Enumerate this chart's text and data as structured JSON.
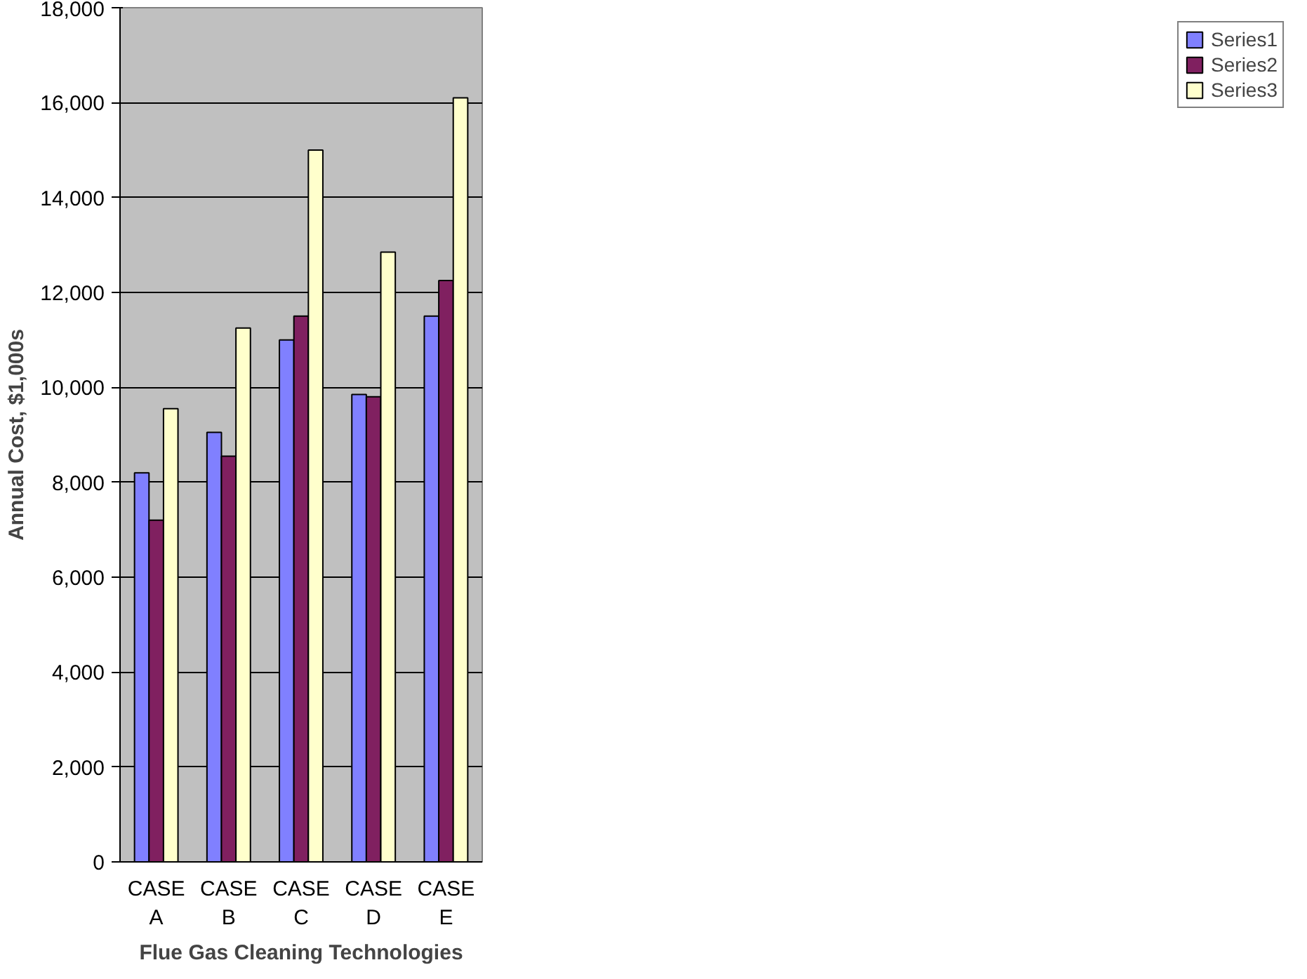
{
  "chart_data": {
    "type": "bar",
    "xlabel": "Flue Gas Cleaning Technologies",
    "ylabel": "Annual Cost, $1,000s",
    "categories": [
      "CASE\nA",
      "CASE\nB",
      "CASE\nC",
      "CASE\nD",
      "CASE\nE"
    ],
    "series": [
      {
        "name": "Series1",
        "color": "#8080ff",
        "values": [
          8200,
          9050,
          11000,
          9850,
          11500
        ]
      },
      {
        "name": "Series2",
        "color": "#802060",
        "values": [
          7200,
          8550,
          11500,
          9800,
          12250
        ]
      },
      {
        "name": "Series3",
        "color": "#ffffcc",
        "values": [
          9550,
          11250,
          15000,
          12850,
          16100
        ]
      }
    ],
    "ylim": [
      0,
      18000
    ],
    "yticks": [
      {
        "value": 0,
        "label": "0"
      },
      {
        "value": 2000,
        "label": "2,000"
      },
      {
        "value": 4000,
        "label": "4,000"
      },
      {
        "value": 6000,
        "label": "6,000"
      },
      {
        "value": 8000,
        "label": "8,000"
      },
      {
        "value": 10000,
        "label": "10,000"
      },
      {
        "value": 12000,
        "label": "12,000"
      },
      {
        "value": 14000,
        "label": "14,000"
      },
      {
        "value": 16000,
        "label": "16,000"
      },
      {
        "value": 18000,
        "label": "18,000"
      }
    ],
    "grid": "y",
    "legend": "right"
  }
}
